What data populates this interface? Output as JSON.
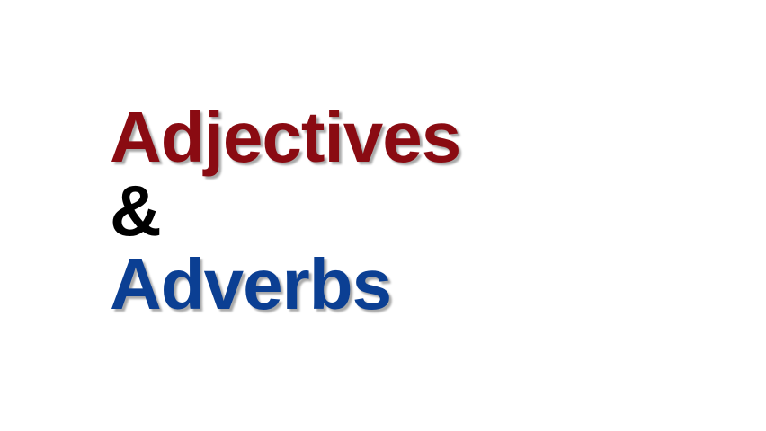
{
  "slide": {
    "title_line_1": "Adjectives",
    "title_line_2": "&",
    "title_line_3": "Adverbs"
  },
  "colors": {
    "line_1": "#8a0b12",
    "line_2": "#000000",
    "line_3": "#0b3f93",
    "background": "#ffffff"
  }
}
